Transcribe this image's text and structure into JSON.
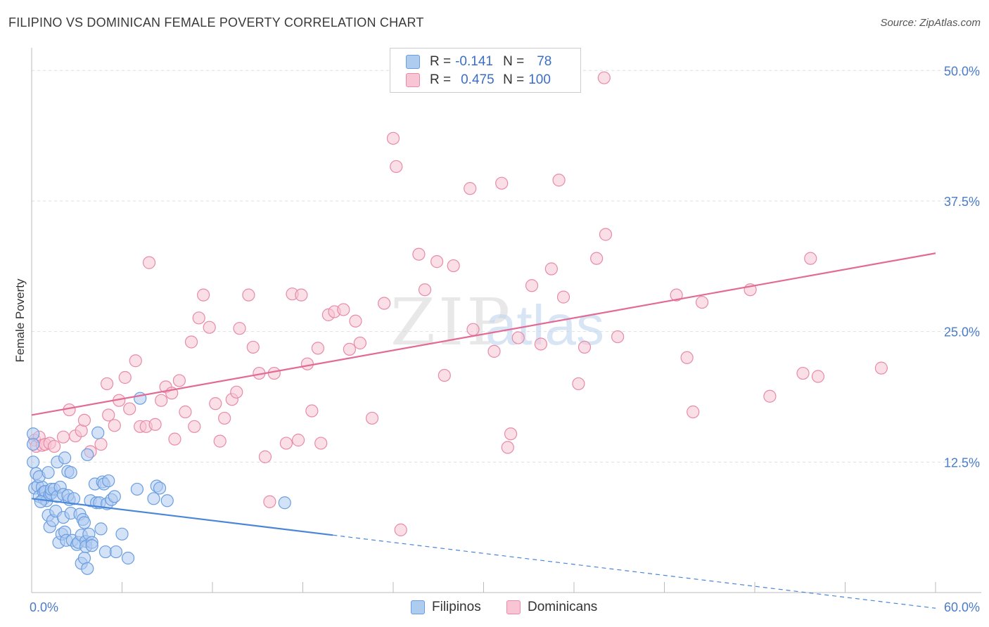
{
  "header": {
    "title": "FILIPINO VS DOMINICAN FEMALE POVERTY CORRELATION CHART",
    "source": "Source: ZipAtlas.com"
  },
  "legend": {
    "r_label": "R =",
    "n_label": "N =",
    "series": [
      {
        "name": "Filipinos",
        "r": "-0.141",
        "n": "78",
        "fill": "#aecbf0",
        "stroke": "#6a9ee0"
      },
      {
        "name": "Dominicans",
        "r": "0.475",
        "n": "100",
        "fill": "#f7c5d4",
        "stroke": "#e88aa8"
      }
    ]
  },
  "watermark": {
    "part1": "ZIP",
    "part2": "atlas"
  },
  "chart_data": {
    "type": "scatter",
    "title": "FILIPINO VS DOMINICAN FEMALE POVERTY CORRELATION CHART",
    "xlabel": "",
    "ylabel": "Female Poverty",
    "xlim": [
      0,
      60
    ],
    "ylim": [
      0,
      51.5
    ],
    "x_tick_labels": [
      "0.0%",
      "60.0%"
    ],
    "y_ticks": [
      12.5,
      25.0,
      37.5,
      50.0
    ],
    "y_tick_labels": [
      "12.5%",
      "25.0%",
      "37.5%",
      "50.0%"
    ],
    "grid": true,
    "series": [
      {
        "name": "Filipinos",
        "color": "#4a86d8",
        "points": [
          [
            0.1,
            15.2
          ],
          [
            0.1,
            14.2
          ],
          [
            0.1,
            12.5
          ],
          [
            0.3,
            11.4
          ],
          [
            0.2,
            10.0
          ],
          [
            0.4,
            10.2
          ],
          [
            0.5,
            9.2
          ],
          [
            0.7,
            10.1
          ],
          [
            0.5,
            11.1
          ],
          [
            0.8,
            9.6
          ],
          [
            0.8,
            9.0
          ],
          [
            0.9,
            9.7
          ],
          [
            1.0,
            8.8
          ],
          [
            1.1,
            7.4
          ],
          [
            1.1,
            11.5
          ],
          [
            1.2,
            9.4
          ],
          [
            1.2,
            6.3
          ],
          [
            1.3,
            9.5
          ],
          [
            1.4,
            6.9
          ],
          [
            1.3,
            9.9
          ],
          [
            1.5,
            9.9
          ],
          [
            1.6,
            7.8
          ],
          [
            1.7,
            9.2
          ],
          [
            1.7,
            12.5
          ],
          [
            1.8,
            4.8
          ],
          [
            1.9,
            10.1
          ],
          [
            2.0,
            5.6
          ],
          [
            2.1,
            9.4
          ],
          [
            2.2,
            5.8
          ],
          [
            2.1,
            7.2
          ],
          [
            2.3,
            5.0
          ],
          [
            2.2,
            12.9
          ],
          [
            2.4,
            11.6
          ],
          [
            2.5,
            8.9
          ],
          [
            2.4,
            9.3
          ],
          [
            2.6,
            7.6
          ],
          [
            2.6,
            11.5
          ],
          [
            2.7,
            5.0
          ],
          [
            2.8,
            9.0
          ],
          [
            3.0,
            4.6
          ],
          [
            3.1,
            4.8
          ],
          [
            3.2,
            7.5
          ],
          [
            3.3,
            2.8
          ],
          [
            3.3,
            5.5
          ],
          [
            3.4,
            7.0
          ],
          [
            3.5,
            3.3
          ],
          [
            3.6,
            4.9
          ],
          [
            3.5,
            6.7
          ],
          [
            3.7,
            2.3
          ],
          [
            3.6,
            4.4
          ],
          [
            3.7,
            13.2
          ],
          [
            3.8,
            5.6
          ],
          [
            3.9,
            8.8
          ],
          [
            4.0,
            4.8
          ],
          [
            4.0,
            4.5
          ],
          [
            4.2,
            10.4
          ],
          [
            4.3,
            8.6
          ],
          [
            4.4,
            15.3
          ],
          [
            4.5,
            8.6
          ],
          [
            4.6,
            6.1
          ],
          [
            4.7,
            10.6
          ],
          [
            4.8,
            10.4
          ],
          [
            4.9,
            3.9
          ],
          [
            5.0,
            8.5
          ],
          [
            5.1,
            10.7
          ],
          [
            5.3,
            8.9
          ],
          [
            5.5,
            9.2
          ],
          [
            5.6,
            3.9
          ],
          [
            6.0,
            5.6
          ],
          [
            6.4,
            3.3
          ],
          [
            7.0,
            9.9
          ],
          [
            7.2,
            18.6
          ],
          [
            8.1,
            9.0
          ],
          [
            8.3,
            10.2
          ],
          [
            8.5,
            10.0
          ],
          [
            9.0,
            8.8
          ],
          [
            16.8,
            8.6
          ],
          [
            0.6,
            8.7
          ]
        ]
      },
      {
        "name": "Dominicans",
        "color": "#e26a95",
        "points": [
          [
            0.2,
            14.6
          ],
          [
            0.3,
            14.0
          ],
          [
            0.5,
            14.9
          ],
          [
            0.7,
            14.1
          ],
          [
            0.9,
            14.2
          ],
          [
            1.2,
            14.3
          ],
          [
            1.5,
            14.0
          ],
          [
            2.1,
            14.9
          ],
          [
            2.5,
            17.5
          ],
          [
            2.9,
            15.0
          ],
          [
            3.3,
            15.5
          ],
          [
            3.5,
            16.5
          ],
          [
            3.9,
            13.5
          ],
          [
            4.6,
            14.2
          ],
          [
            5.0,
            20.0
          ],
          [
            5.1,
            17.0
          ],
          [
            5.5,
            16.0
          ],
          [
            5.8,
            18.4
          ],
          [
            6.2,
            20.6
          ],
          [
            6.5,
            17.6
          ],
          [
            6.9,
            22.2
          ],
          [
            7.2,
            15.9
          ],
          [
            7.6,
            15.9
          ],
          [
            7.8,
            31.6
          ],
          [
            8.2,
            16.1
          ],
          [
            8.6,
            18.4
          ],
          [
            8.9,
            19.7
          ],
          [
            9.3,
            19.1
          ],
          [
            9.5,
            14.7
          ],
          [
            9.8,
            20.3
          ],
          [
            10.2,
            17.3
          ],
          [
            10.6,
            24.0
          ],
          [
            10.8,
            15.9
          ],
          [
            11.1,
            26.3
          ],
          [
            11.4,
            28.5
          ],
          [
            11.8,
            25.4
          ],
          [
            12.2,
            18.1
          ],
          [
            12.5,
            14.5
          ],
          [
            12.8,
            16.7
          ],
          [
            13.3,
            18.5
          ],
          [
            13.6,
            19.2
          ],
          [
            13.8,
            25.3
          ],
          [
            14.4,
            28.5
          ],
          [
            14.7,
            23.5
          ],
          [
            15.1,
            21.0
          ],
          [
            15.5,
            13.0
          ],
          [
            15.8,
            8.7
          ],
          [
            16.1,
            21.0
          ],
          [
            16.9,
            14.3
          ],
          [
            17.3,
            28.6
          ],
          [
            17.7,
            14.6
          ],
          [
            17.9,
            28.5
          ],
          [
            18.3,
            21.9
          ],
          [
            18.6,
            17.4
          ],
          [
            19.0,
            23.4
          ],
          [
            19.2,
            14.3
          ],
          [
            19.7,
            26.6
          ],
          [
            20.1,
            26.9
          ],
          [
            20.7,
            27.1
          ],
          [
            21.1,
            23.3
          ],
          [
            21.5,
            26.0
          ],
          [
            21.8,
            23.9
          ],
          [
            22.6,
            16.7
          ],
          [
            23.4,
            27.7
          ],
          [
            24.0,
            43.5
          ],
          [
            24.2,
            40.8
          ],
          [
            24.5,
            6.0
          ],
          [
            25.7,
            32.4
          ],
          [
            26.1,
            29.0
          ],
          [
            26.9,
            31.7
          ],
          [
            27.4,
            20.8
          ],
          [
            28.0,
            31.3
          ],
          [
            29.1,
            38.7
          ],
          [
            29.3,
            25.2
          ],
          [
            30.7,
            23.1
          ],
          [
            31.2,
            39.2
          ],
          [
            31.6,
            13.9
          ],
          [
            31.8,
            15.2
          ],
          [
            32.3,
            24.4
          ],
          [
            33.2,
            29.4
          ],
          [
            33.8,
            23.8
          ],
          [
            34.5,
            31.0
          ],
          [
            35.0,
            39.5
          ],
          [
            35.3,
            28.3
          ],
          [
            36.3,
            20.0
          ],
          [
            36.7,
            23.5
          ],
          [
            37.5,
            32.0
          ],
          [
            38.0,
            49.3
          ],
          [
            38.1,
            34.3
          ],
          [
            38.9,
            24.5
          ],
          [
            42.8,
            28.5
          ],
          [
            43.5,
            22.5
          ],
          [
            43.9,
            17.3
          ],
          [
            44.5,
            27.8
          ],
          [
            47.7,
            29.0
          ],
          [
            49.0,
            18.8
          ],
          [
            51.2,
            21.0
          ],
          [
            51.7,
            32.0
          ],
          [
            52.2,
            20.7
          ],
          [
            56.4,
            21.5
          ]
        ]
      }
    ],
    "trendlines": [
      {
        "series": "Filipinos",
        "solid": [
          [
            0,
            9.0
          ],
          [
            20,
            5.5
          ]
        ],
        "dashed": [
          [
            20,
            5.5
          ],
          [
            60,
            -1.5
          ]
        ]
      },
      {
        "series": "Dominicans",
        "solid": [
          [
            0,
            17.0
          ],
          [
            60,
            32.5
          ]
        ]
      }
    ]
  }
}
